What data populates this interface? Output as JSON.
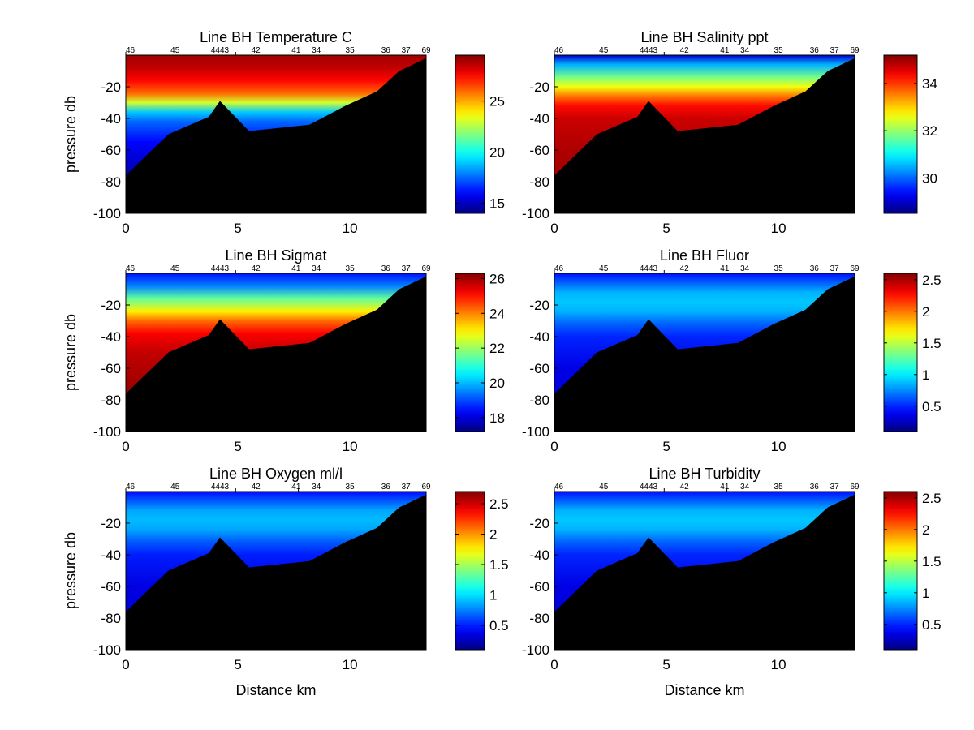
{
  "chart_data": [
    {
      "type": "heatmap",
      "title": "Line BH Temperature C",
      "xlabel": "",
      "ylabel": "pressure db",
      "xlim": [
        0,
        13.4
      ],
      "ylim": [
        -100,
        0
      ],
      "xticks": [
        0,
        5,
        10
      ],
      "yticks": [
        -100,
        -80,
        -60,
        -40,
        -20
      ],
      "stations": [
        {
          "label": "46",
          "x": 0.2
        },
        {
          "label": "45",
          "x": 2.2
        },
        {
          "label": "4443",
          "x": 4.2
        },
        {
          "label": "42",
          "x": 5.8
        },
        {
          "label": "41",
          "x": 7.6
        },
        {
          "label": "34",
          "x": 8.5
        },
        {
          "label": "35",
          "x": 10.0
        },
        {
          "label": "36",
          "x": 11.6
        },
        {
          "label": "37",
          "x": 12.5
        },
        {
          "label": "69",
          "x": 13.4
        }
      ],
      "station_ticks": [
        0,
        4.9
      ],
      "bottom_profile": [
        [
          0,
          -76
        ],
        [
          1.9,
          -50
        ],
        [
          3.7,
          -39
        ],
        [
          4.2,
          -29
        ],
        [
          5.5,
          -48
        ],
        [
          8.2,
          -44
        ],
        [
          9.8,
          -32
        ],
        [
          11.2,
          -23
        ],
        [
          12.2,
          -10
        ],
        [
          13.4,
          -2
        ]
      ],
      "color_scale": "jet",
      "colorbar_range": [
        14,
        29.5
      ],
      "colorbar_ticks": [
        15,
        20,
        25
      ],
      "profile": [
        [
          0,
          29
        ],
        [
          8,
          28.5
        ],
        [
          16,
          27.5
        ],
        [
          24,
          26
        ],
        [
          30,
          23
        ],
        [
          36,
          19
        ],
        [
          42,
          17.5
        ],
        [
          55,
          16
        ],
        [
          70,
          15
        ],
        [
          100,
          14.5
        ]
      ]
    },
    {
      "type": "heatmap",
      "title": "Line BH Salinity ppt",
      "xlabel": "",
      "ylabel": "",
      "xlim": [
        0,
        13.4
      ],
      "ylim": [
        -100,
        0
      ],
      "xticks": [
        0,
        5,
        10
      ],
      "yticks": [
        -100,
        -80,
        -60,
        -40,
        -20
      ],
      "stations": [
        {
          "label": "46",
          "x": 0.2
        },
        {
          "label": "45",
          "x": 2.2
        },
        {
          "label": "4443",
          "x": 4.2
        },
        {
          "label": "42",
          "x": 5.8
        },
        {
          "label": "41",
          "x": 7.6
        },
        {
          "label": "34",
          "x": 8.5
        },
        {
          "label": "35",
          "x": 10.0
        },
        {
          "label": "36",
          "x": 11.6
        },
        {
          "label": "37",
          "x": 12.5
        },
        {
          "label": "69",
          "x": 13.4
        }
      ],
      "station_ticks": [
        0,
        4.9
      ],
      "bottom_profile": [
        [
          0,
          -76
        ],
        [
          1.9,
          -50
        ],
        [
          3.7,
          -39
        ],
        [
          4.2,
          -29
        ],
        [
          5.5,
          -48
        ],
        [
          8.2,
          -44
        ],
        [
          9.8,
          -32
        ],
        [
          11.2,
          -23
        ],
        [
          12.2,
          -10
        ],
        [
          13.4,
          -2
        ]
      ],
      "color_scale": "jet",
      "colorbar_range": [
        28.5,
        35.2
      ],
      "colorbar_ticks": [
        30,
        32,
        34
      ],
      "profile": [
        [
          0,
          29
        ],
        [
          6,
          30.5
        ],
        [
          14,
          31.8
        ],
        [
          20,
          32.6
        ],
        [
          26,
          33.6
        ],
        [
          32,
          34.3
        ],
        [
          40,
          34.7
        ],
        [
          60,
          34.9
        ],
        [
          100,
          35
        ]
      ]
    },
    {
      "type": "heatmap",
      "title": "Line BH Sigmat",
      "xlabel": "",
      "ylabel": "pressure db",
      "xlim": [
        0,
        13.4
      ],
      "ylim": [
        -100,
        0
      ],
      "xticks": [
        0,
        5,
        10
      ],
      "yticks": [
        -100,
        -80,
        -60,
        -40,
        -20
      ],
      "stations": [
        {
          "label": "46",
          "x": 0.2
        },
        {
          "label": "45",
          "x": 2.2
        },
        {
          "label": "4443",
          "x": 4.2
        },
        {
          "label": "42",
          "x": 5.8
        },
        {
          "label": "41",
          "x": 7.6
        },
        {
          "label": "34",
          "x": 8.5
        },
        {
          "label": "35",
          "x": 10.0
        },
        {
          "label": "36",
          "x": 11.6
        },
        {
          "label": "37",
          "x": 12.5
        },
        {
          "label": "69",
          "x": 13.4
        }
      ],
      "station_ticks": [
        0,
        4.9
      ],
      "bottom_profile": [
        [
          0,
          -76
        ],
        [
          1.9,
          -50
        ],
        [
          3.7,
          -39
        ],
        [
          4.2,
          -29
        ],
        [
          5.5,
          -48
        ],
        [
          8.2,
          -44
        ],
        [
          9.8,
          -32
        ],
        [
          11.2,
          -23
        ],
        [
          12.2,
          -10
        ],
        [
          13.4,
          -2
        ]
      ],
      "color_scale": "jet",
      "colorbar_range": [
        17.2,
        26.3
      ],
      "colorbar_ticks": [
        18,
        20,
        22,
        24,
        26
      ],
      "profile": [
        [
          0,
          18.5
        ],
        [
          8,
          19.5
        ],
        [
          16,
          21.5
        ],
        [
          24,
          23
        ],
        [
          30,
          24.2
        ],
        [
          38,
          25.2
        ],
        [
          50,
          25.7
        ],
        [
          70,
          26
        ],
        [
          100,
          26.2
        ]
      ]
    },
    {
      "type": "heatmap",
      "title": "Line BH Fluor",
      "xlabel": "",
      "ylabel": "",
      "xlim": [
        0,
        13.4
      ],
      "ylim": [
        -100,
        0
      ],
      "xticks": [
        0,
        5,
        10
      ],
      "yticks": [
        -100,
        -80,
        -60,
        -40,
        -20
      ],
      "stations": [
        {
          "label": "46",
          "x": 0.2
        },
        {
          "label": "45",
          "x": 2.2
        },
        {
          "label": "4443",
          "x": 4.2
        },
        {
          "label": "42",
          "x": 5.8
        },
        {
          "label": "41",
          "x": 7.6
        },
        {
          "label": "34",
          "x": 8.5
        },
        {
          "label": "35",
          "x": 10.0
        },
        {
          "label": "36",
          "x": 11.6
        },
        {
          "label": "37",
          "x": 12.5
        },
        {
          "label": "69",
          "x": 13.4
        }
      ],
      "station_ticks": [
        0,
        4.9
      ],
      "bottom_profile": [
        [
          0,
          -76
        ],
        [
          1.9,
          -50
        ],
        [
          3.7,
          -39
        ],
        [
          4.2,
          -29
        ],
        [
          5.5,
          -48
        ],
        [
          8.2,
          -44
        ],
        [
          9.8,
          -32
        ],
        [
          11.2,
          -23
        ],
        [
          12.2,
          -10
        ],
        [
          13.4,
          -2
        ]
      ],
      "color_scale": "jet",
      "colorbar_range": [
        0.1,
        2.6
      ],
      "colorbar_ticks": [
        0.5,
        1,
        1.5,
        2,
        2.5
      ],
      "profile": [
        [
          0,
          0.45
        ],
        [
          6,
          0.65
        ],
        [
          12,
          0.85
        ],
        [
          18,
          0.9
        ],
        [
          24,
          0.85
        ],
        [
          32,
          0.65
        ],
        [
          40,
          0.5
        ],
        [
          60,
          0.35
        ],
        [
          100,
          0.3
        ]
      ]
    },
    {
      "type": "heatmap",
      "title": "Line BH Oxygen ml/l",
      "xlabel": "Distance km",
      "ylabel": "pressure db",
      "xlim": [
        0,
        13.4
      ],
      "ylim": [
        -100,
        0
      ],
      "xticks": [
        0,
        5,
        10
      ],
      "yticks": [
        -100,
        -80,
        -60,
        -40,
        -20
      ],
      "stations": [
        {
          "label": "46",
          "x": 0.2
        },
        {
          "label": "45",
          "x": 2.2
        },
        {
          "label": "4443",
          "x": 4.2
        },
        {
          "label": "42",
          "x": 5.8
        },
        {
          "label": "41",
          "x": 7.6
        },
        {
          "label": "34",
          "x": 8.5
        },
        {
          "label": "35",
          "x": 10.0
        },
        {
          "label": "36",
          "x": 11.6
        },
        {
          "label": "37",
          "x": 12.5
        },
        {
          "label": "69",
          "x": 13.4
        }
      ],
      "station_ticks": [
        0,
        4.9,
        7.7
      ],
      "bottom_profile": [
        [
          0,
          -76
        ],
        [
          1.9,
          -50
        ],
        [
          3.7,
          -39
        ],
        [
          4.2,
          -29
        ],
        [
          5.5,
          -48
        ],
        [
          8.2,
          -44
        ],
        [
          9.8,
          -32
        ],
        [
          11.2,
          -23
        ],
        [
          12.2,
          -10
        ],
        [
          13.4,
          -2
        ]
      ],
      "color_scale": "jet",
      "colorbar_range": [
        0.1,
        2.7
      ],
      "colorbar_ticks": [
        0.5,
        1,
        1.5,
        2,
        2.5
      ],
      "profile": [
        [
          0,
          0.45
        ],
        [
          6,
          0.65
        ],
        [
          12,
          0.85
        ],
        [
          18,
          0.9
        ],
        [
          24,
          0.85
        ],
        [
          32,
          0.65
        ],
        [
          40,
          0.5
        ],
        [
          60,
          0.35
        ],
        [
          100,
          0.3
        ]
      ]
    },
    {
      "type": "heatmap",
      "title": "Line BH Turbidity",
      "xlabel": "Distance km",
      "ylabel": "",
      "xlim": [
        0,
        13.4
      ],
      "ylim": [
        -100,
        0
      ],
      "xticks": [
        0,
        5,
        10
      ],
      "yticks": [
        -100,
        -80,
        -60,
        -40,
        -20
      ],
      "stations": [
        {
          "label": "46",
          "x": 0.2
        },
        {
          "label": "45",
          "x": 2.2
        },
        {
          "label": "4443",
          "x": 4.2
        },
        {
          "label": "42",
          "x": 5.8
        },
        {
          "label": "41",
          "x": 7.6
        },
        {
          "label": "34",
          "x": 8.5
        },
        {
          "label": "35",
          "x": 10.0
        },
        {
          "label": "36",
          "x": 11.6
        },
        {
          "label": "37",
          "x": 12.5
        },
        {
          "label": "69",
          "x": 13.4
        }
      ],
      "station_ticks": [
        0,
        4.9,
        7.7
      ],
      "bottom_profile": [
        [
          0,
          -76
        ],
        [
          1.9,
          -50
        ],
        [
          3.7,
          -39
        ],
        [
          4.2,
          -29
        ],
        [
          5.5,
          -48
        ],
        [
          8.2,
          -44
        ],
        [
          9.8,
          -32
        ],
        [
          11.2,
          -23
        ],
        [
          12.2,
          -10
        ],
        [
          13.4,
          -2
        ]
      ],
      "color_scale": "jet",
      "colorbar_range": [
        0.1,
        2.6
      ],
      "colorbar_ticks": [
        0.5,
        1,
        1.5,
        2,
        2.5
      ],
      "profile": [
        [
          0,
          0.45
        ],
        [
          6,
          0.65
        ],
        [
          12,
          0.85
        ],
        [
          18,
          0.9
        ],
        [
          24,
          0.85
        ],
        [
          32,
          0.65
        ],
        [
          40,
          0.5
        ],
        [
          60,
          0.35
        ],
        [
          100,
          0.3
        ]
      ]
    }
  ]
}
